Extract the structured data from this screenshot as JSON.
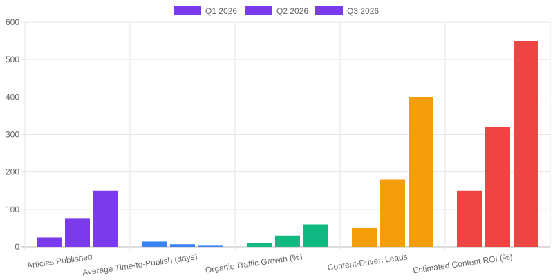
{
  "chart_data": {
    "type": "bar",
    "categories": [
      "Articles Published",
      "Average Time-to-Publish (days)",
      "Organic Traffic Growth (%)",
      "Content-Driven Leads",
      "Estimated Content ROI (%)"
    ],
    "series": [
      {
        "name": "Q1 2026",
        "values": [
          25,
          14,
          10,
          50,
          150
        ]
      },
      {
        "name": "Q2 2026",
        "values": [
          75,
          7,
          30,
          180,
          320
        ]
      },
      {
        "name": "Q3 2026",
        "values": [
          150,
          3,
          60,
          400,
          550
        ]
      }
    ],
    "category_colors": [
      "#7c3aed",
      "#3b82f6",
      "#10b981",
      "#f59e0b",
      "#ef4444"
    ],
    "legend_color": "#7c3aed",
    "ylim": [
      0,
      600
    ],
    "yticks": [
      0,
      100,
      200,
      300,
      400,
      500,
      600
    ],
    "grid": true,
    "legend_position": "top"
  }
}
